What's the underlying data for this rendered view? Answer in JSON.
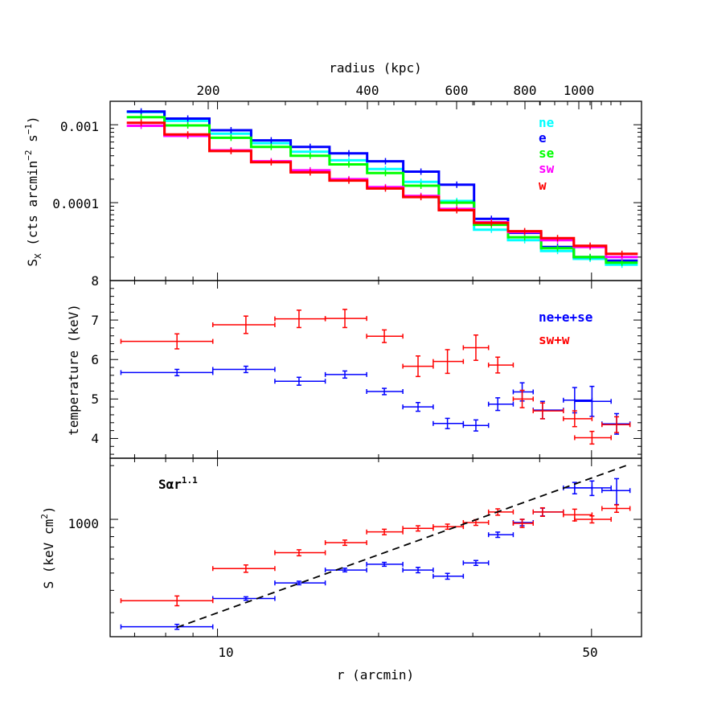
{
  "colors": {
    "ne": "#00ffff",
    "e": "#0000ff",
    "se": "#00ff00",
    "sw": "#ff00ff",
    "w": "#ff0000",
    "blue": "#0000ff",
    "red": "#ff0000"
  },
  "axes": {
    "top_label": "radius (kpc)",
    "top_ticks": [
      "200",
      "400",
      "600",
      "800",
      "1000"
    ],
    "bottom_label": "r (arcmin)",
    "bottom_ticks": [
      "10",
      "50"
    ]
  },
  "chart_data": [
    {
      "type": "line",
      "ylabel": "S",
      "ylabel_sub": "X",
      "ylabel_paren": "(cts arcmin",
      "ylabel_sup1": "−2",
      "ylabel_mid": " s",
      "ylabel_sup2": "−1",
      "ylabel_close": ")",
      "yscale": "log",
      "ylim": [
        1e-05,
        0.002
      ],
      "xlim": [
        6.3,
        62
      ],
      "yticks": [
        "0.001",
        "0.0001"
      ],
      "legend_placement": "top-right",
      "series": [
        {
          "name": "ne",
          "color": "#00ffff",
          "x": [
            7.2,
            8.8,
            10.6,
            12.6,
            14.9,
            17.6,
            20.6,
            24,
            28,
            32.5,
            37.5,
            43.2,
            49.7,
            57
          ],
          "y": [
            0.00145,
            0.00112,
            0.00077,
            0.00058,
            0.00045,
            0.00035,
            0.00027,
            0.000185,
            0.000105,
            4.5e-05,
            3.3e-05,
            2.4e-05,
            1.9e-05,
            1.6e-05
          ]
        },
        {
          "name": "e",
          "color": "#0000ff",
          "x": [
            7.2,
            8.8,
            10.6,
            12.6,
            14.9,
            17.6,
            20.6,
            24,
            28,
            32.5,
            37.5,
            43.2,
            49.7,
            57
          ],
          "y": [
            0.00148,
            0.0012,
            0.00085,
            0.00063,
            0.00052,
            0.00043,
            0.00034,
            0.00025,
            0.00017,
            6.2e-05,
            4.1e-05,
            2.7e-05,
            2e-05,
            1.8e-05
          ]
        },
        {
          "name": "se",
          "color": "#00ff00",
          "x": [
            7.2,
            8.8,
            10.6,
            12.6,
            14.9,
            17.6,
            20.6,
            24,
            28,
            32.5,
            37.5,
            43.2,
            49.7,
            57
          ],
          "y": [
            0.00125,
            0.00098,
            0.00068,
            0.00052,
            0.0004,
            0.00031,
            0.00024,
            0.000165,
            0.0001,
            5.2e-05,
            3.6e-05,
            2.6e-05,
            2e-05,
            1.7e-05
          ]
        },
        {
          "name": "sw",
          "color": "#ff00ff",
          "x": [
            7.2,
            8.8,
            10.6,
            12.6,
            14.9,
            17.6,
            20.6,
            24,
            28,
            32.5,
            37.5,
            43.2,
            49.7,
            57
          ],
          "y": [
            0.00097,
            0.00072,
            0.00047,
            0.00034,
            0.00026,
            0.0002,
            0.000158,
            0.000122,
            8.3e-05,
            5.6e-05,
            4.2e-05,
            3.3e-05,
            2.7e-05,
            2e-05
          ]
        },
        {
          "name": "w",
          "color": "#ff0000",
          "x": [
            7.2,
            8.8,
            10.6,
            12.6,
            14.9,
            17.6,
            20.6,
            24,
            28,
            32.5,
            37.5,
            43.2,
            49.7,
            57
          ],
          "y": [
            0.00106,
            0.00075,
            0.00046,
            0.00033,
            0.000245,
            0.000192,
            0.000152,
            0.000118,
            8e-05,
            5.5e-05,
            4.3e-05,
            3.5e-05,
            2.8e-05,
            2.2e-05
          ]
        }
      ]
    },
    {
      "type": "scatter",
      "ylabel": "temperature (keV)",
      "ylim": [
        3.5,
        8
      ],
      "xlim": [
        6.3,
        62
      ],
      "yticks": [
        "8",
        "7",
        "6",
        "5",
        "4"
      ],
      "legend_placement": "top-right",
      "series": [
        {
          "name": "ne+e+se",
          "color": "#0000ff",
          "x": [
            8.4,
            11.3,
            14.2,
            17.3,
            20.5,
            23.7,
            26.9,
            30.4,
            33.4,
            37.1,
            40.5,
            46.5,
            50.1,
            55.7
          ],
          "xlo": [
            6.6,
            9.8,
            12.8,
            15.9,
            19,
            22.2,
            25.3,
            28.8,
            32.1,
            35.7,
            38.9,
            44.3,
            46.5,
            52.3
          ],
          "xhi": [
            9.8,
            12.8,
            15.9,
            19,
            22.2,
            25.3,
            28.8,
            32.1,
            35.7,
            38.9,
            44.3,
            50.1,
            54.4,
            59
          ],
          "y": [
            5.67,
            5.75,
            5.45,
            5.62,
            5.19,
            4.8,
            4.38,
            4.33,
            4.87,
            5.18,
            4.72,
            4.97,
            4.94,
            4.37
          ],
          "err": [
            0.08,
            0.08,
            0.1,
            0.09,
            0.08,
            0.11,
            0.13,
            0.14,
            0.16,
            0.23,
            0.22,
            0.32,
            0.38,
            0.26
          ]
        },
        {
          "name": "sw+w",
          "color": "#ff0000",
          "x": [
            8.4,
            11.3,
            14.2,
            17.3,
            20.5,
            23.7,
            26.9,
            30.4,
            33.4,
            37.1,
            40.5,
            46.5,
            50.1,
            55.7
          ],
          "xlo": [
            6.6,
            9.8,
            12.8,
            15.9,
            19,
            22.2,
            25.3,
            28.8,
            32.1,
            35.7,
            38.9,
            44.3,
            46.5,
            52.3
          ],
          "xhi": [
            9.8,
            12.8,
            15.9,
            19,
            22.2,
            25.3,
            28.8,
            32.1,
            35.7,
            38.9,
            44.3,
            50.1,
            54.4,
            59
          ],
          "y": [
            6.46,
            6.88,
            7.03,
            7.04,
            6.59,
            5.83,
            5.95,
            6.3,
            5.86,
            5.0,
            4.7,
            4.5,
            4.02,
            4.35
          ],
          "err": [
            0.19,
            0.22,
            0.22,
            0.23,
            0.16,
            0.26,
            0.3,
            0.32,
            0.2,
            0.22,
            0.2,
            0.2,
            0.16,
            0.2
          ]
        }
      ]
    },
    {
      "type": "scatter",
      "ylabel": "S (keV cm",
      "ylabel_sup": "2",
      "ylabel_close": ")",
      "annotation": "Sαr",
      "annotation_sup": "1.1",
      "yscale": "log",
      "ylim": [
        220,
        2200
      ],
      "xlim": [
        6.3,
        62
      ],
      "yticks": [
        "1000"
      ],
      "series": [
        {
          "name": "ne+e+se",
          "color": "#0000ff",
          "x": [
            8.4,
            11.3,
            14.2,
            17.3,
            20.5,
            23.7,
            26.9,
            30.4,
            33.4,
            37.1,
            40.5,
            46.5,
            50.1,
            55.7
          ],
          "xlo": [
            6.6,
            9.8,
            12.8,
            15.9,
            19,
            22.2,
            25.3,
            28.8,
            32.1,
            35.7,
            38.9,
            44.3,
            46.5,
            52.3
          ],
          "xhi": [
            9.8,
            12.8,
            15.9,
            19,
            22.2,
            25.3,
            28.8,
            32.1,
            35.7,
            38.9,
            44.3,
            50.1,
            54.4,
            59
          ],
          "y": [
            250,
            360,
            440,
            520,
            560,
            520,
            480,
            570,
            820,
            960,
            1100,
            1500,
            1500,
            1450
          ],
          "err": [
            8,
            8,
            10,
            12,
            14,
            18,
            18,
            18,
            28,
            40,
            55,
            110,
            140,
            240
          ]
        },
        {
          "name": "sw+w",
          "color": "#ff0000",
          "x": [
            8.4,
            11.3,
            14.2,
            17.3,
            20.5,
            23.7,
            26.9,
            30.4,
            33.4,
            37.1,
            40.5,
            46.5,
            50.1,
            55.7
          ],
          "xlo": [
            6.6,
            9.8,
            12.8,
            15.9,
            19,
            22.2,
            25.3,
            28.8,
            32.1,
            35.7,
            38.9,
            44.3,
            46.5,
            52.3
          ],
          "xhi": [
            9.8,
            12.8,
            15.9,
            19,
            22.2,
            25.3,
            28.8,
            32.1,
            35.7,
            38.9,
            44.3,
            50.1,
            54.4,
            59
          ],
          "y": [
            350,
            530,
            650,
            740,
            850,
            890,
            910,
            960,
            1100,
            950,
            1100,
            1060,
            1000,
            1150
          ],
          "err": [
            22,
            25,
            25,
            25,
            30,
            30,
            30,
            35,
            45,
            50,
            60,
            80,
            45,
            55
          ]
        },
        {
          "name": "fit",
          "color": "#000000",
          "dashed": true,
          "x": [
            8.4,
            58
          ],
          "y": [
            248,
            2000
          ]
        }
      ]
    }
  ]
}
